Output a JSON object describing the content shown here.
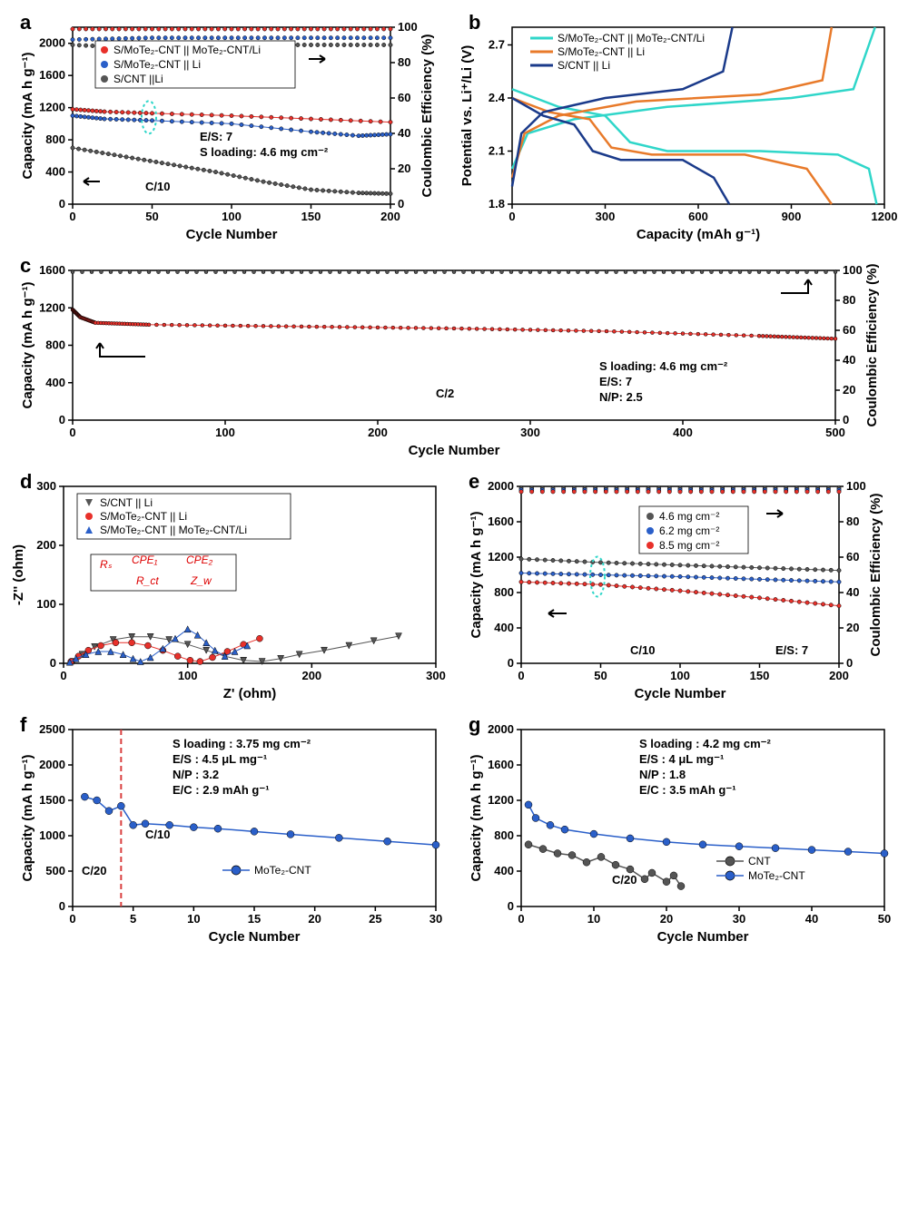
{
  "colors": {
    "red": "#e8302a",
    "blue": "#2a5fc9",
    "gray": "#555555",
    "darkblue": "#1a3a8a",
    "teal": "#2fd6c9",
    "orange": "#e87a2a",
    "black": "#000000",
    "dashred": "#d94040",
    "markerRed": "#e8302a",
    "markerBlue": "#2a5fc9",
    "markerGray": "#555555"
  },
  "a": {
    "letter": "a",
    "xlabel": "Cycle Number",
    "ylabel": "Capacity (mA h g⁻¹)",
    "y2label": "Coulombic Efficiency (%)",
    "xlim": [
      0,
      200
    ],
    "ylim": [
      0,
      2200
    ],
    "y2lim": [
      0,
      100
    ],
    "xticks": [
      0,
      50,
      100,
      150,
      200
    ],
    "yticks": [
      0,
      400,
      800,
      1200,
      1600,
      2000
    ],
    "y2ticks": [
      0,
      20,
      40,
      60,
      80,
      100
    ],
    "legend": [
      {
        "c": "#e8302a",
        "t": "S/MoTe₂-CNT || MoTe₂-CNT/Li"
      },
      {
        "c": "#2a5fc9",
        "t": "S/MoTe₂-CNT || Li"
      },
      {
        "c": "#555555",
        "t": "S/CNT ||Li"
      }
    ],
    "anno": [
      "E/S: 7",
      "S loading: 4.6 mg cm⁻²",
      "C/10"
    ],
    "series": [
      {
        "c": "#e8302a",
        "cap": [
          [
            0,
            1180
          ],
          [
            20,
            1150
          ],
          [
            50,
            1130
          ],
          [
            100,
            1100
          ],
          [
            150,
            1060
          ],
          [
            200,
            1020
          ]
        ],
        "ce": [
          [
            0,
            99
          ],
          [
            50,
            99
          ],
          [
            100,
            99
          ],
          [
            150,
            99
          ],
          [
            200,
            99
          ]
        ]
      },
      {
        "c": "#2a5fc9",
        "cap": [
          [
            0,
            1100
          ],
          [
            20,
            1060
          ],
          [
            50,
            1040
          ],
          [
            100,
            1000
          ],
          [
            150,
            900
          ],
          [
            180,
            850
          ],
          [
            200,
            870
          ]
        ],
        "ce": [
          [
            0,
            93
          ],
          [
            50,
            94
          ],
          [
            100,
            94
          ],
          [
            150,
            94
          ],
          [
            200,
            94
          ]
        ]
      },
      {
        "c": "#555555",
        "cap": [
          [
            0,
            700
          ],
          [
            30,
            600
          ],
          [
            60,
            500
          ],
          [
            90,
            400
          ],
          [
            120,
            280
          ],
          [
            150,
            180
          ],
          [
            180,
            140
          ],
          [
            200,
            130
          ]
        ],
        "ce": [
          [
            0,
            90
          ],
          [
            50,
            88
          ],
          [
            100,
            90
          ],
          [
            150,
            90
          ],
          [
            200,
            90
          ]
        ]
      }
    ]
  },
  "b": {
    "letter": "b",
    "xlabel": "Capacity (mAh g⁻¹)",
    "ylabel": "Potential vs. Li⁺/Li (V)",
    "xlim": [
      0,
      1200
    ],
    "ylim": [
      1.8,
      2.8
    ],
    "xticks": [
      0,
      300,
      600,
      900,
      1200
    ],
    "yticks": [
      1.8,
      2.1,
      2.4,
      2.7
    ],
    "legend": [
      {
        "c": "#2fd6c9",
        "t": "S/MoTe₂-CNT || MoTe₂-CNT/Li"
      },
      {
        "c": "#e87a2a",
        "t": "S/MoTe₂-CNT || Li"
      },
      {
        "c": "#1a3a8a",
        "t": "S/CNT || Li"
      }
    ],
    "curves": [
      {
        "c": "#2fd6c9",
        "d": [
          [
            0,
            2.45
          ],
          [
            150,
            2.35
          ],
          [
            300,
            2.3
          ],
          [
            380,
            2.15
          ],
          [
            500,
            2.1
          ],
          [
            800,
            2.1
          ],
          [
            1050,
            2.08
          ],
          [
            1150,
            2.0
          ],
          [
            1175,
            1.8
          ]
        ],
        "ch": [
          [
            0,
            2.0
          ],
          [
            50,
            2.2
          ],
          [
            200,
            2.28
          ],
          [
            500,
            2.35
          ],
          [
            900,
            2.4
          ],
          [
            1100,
            2.45
          ],
          [
            1170,
            2.8
          ]
        ]
      },
      {
        "c": "#e87a2a",
        "d": [
          [
            0,
            2.4
          ],
          [
            120,
            2.32
          ],
          [
            250,
            2.28
          ],
          [
            320,
            2.12
          ],
          [
            450,
            2.08
          ],
          [
            750,
            2.08
          ],
          [
            950,
            2.0
          ],
          [
            1030,
            1.8
          ]
        ],
        "ch": [
          [
            0,
            1.95
          ],
          [
            40,
            2.2
          ],
          [
            150,
            2.3
          ],
          [
            400,
            2.38
          ],
          [
            800,
            2.42
          ],
          [
            1000,
            2.5
          ],
          [
            1030,
            2.8
          ]
        ]
      },
      {
        "c": "#1a3a8a",
        "d": [
          [
            0,
            2.4
          ],
          [
            100,
            2.3
          ],
          [
            200,
            2.25
          ],
          [
            260,
            2.1
          ],
          [
            350,
            2.05
          ],
          [
            550,
            2.05
          ],
          [
            650,
            1.95
          ],
          [
            700,
            1.8
          ]
        ],
        "ch": [
          [
            0,
            1.9
          ],
          [
            30,
            2.2
          ],
          [
            100,
            2.32
          ],
          [
            300,
            2.4
          ],
          [
            550,
            2.45
          ],
          [
            680,
            2.55
          ],
          [
            710,
            2.8
          ]
        ]
      }
    ]
  },
  "c": {
    "letter": "c",
    "xlabel": "Cycle Number",
    "ylabel": "Capacity (mA h g⁻¹)",
    "y2label": "Coulombic Efficiency (%)",
    "xlim": [
      0,
      500
    ],
    "ylim": [
      0,
      1600
    ],
    "y2lim": [
      0,
      100
    ],
    "xticks": [
      0,
      100,
      200,
      300,
      400,
      500
    ],
    "yticks": [
      0,
      400,
      800,
      1200,
      1600
    ],
    "y2ticks": [
      0,
      20,
      40,
      60,
      80,
      100
    ],
    "anno": [
      "S loading: 4.6 mg cm⁻²",
      "E/S: 7",
      "N/P: 2.5",
      "C/2"
    ],
    "cap": [
      [
        0,
        1180
      ],
      [
        5,
        1100
      ],
      [
        15,
        1040
      ],
      [
        50,
        1020
      ],
      [
        150,
        1000
      ],
      [
        250,
        980
      ],
      [
        350,
        950
      ],
      [
        450,
        900
      ],
      [
        500,
        870
      ]
    ],
    "ce": [
      [
        0,
        99
      ],
      [
        250,
        99
      ],
      [
        500,
        99
      ]
    ],
    "c": "#e8302a",
    "cce": "#555555"
  },
  "d": {
    "letter": "d",
    "xlabel": "Z' (ohm)",
    "ylabel": "-Z'' (ohm)",
    "xlim": [
      0,
      300
    ],
    "ylim": [
      0,
      300
    ],
    "xticks": [
      0,
      100,
      200,
      300
    ],
    "yticks": [
      0,
      100,
      200,
      300
    ],
    "legend": [
      {
        "c": "#555555",
        "t": "S/CNT || Li",
        "m": "tri-down"
      },
      {
        "c": "#e8302a",
        "t": "S/MoTe₂-CNT || Li",
        "m": "circle"
      },
      {
        "c": "#2a5fc9",
        "t": "S/MoTe₂-CNT || MoTe₂-CNT/Li",
        "m": "tri-up"
      }
    ],
    "series": [
      {
        "c": "#555555",
        "m": "tri-down",
        "pts": [
          [
            8,
            3
          ],
          [
            15,
            15
          ],
          [
            25,
            28
          ],
          [
            40,
            40
          ],
          [
            55,
            45
          ],
          [
            70,
            45
          ],
          [
            85,
            40
          ],
          [
            100,
            32
          ],
          [
            115,
            22
          ],
          [
            130,
            12
          ],
          [
            145,
            5
          ],
          [
            160,
            3
          ],
          [
            175,
            8
          ],
          [
            190,
            15
          ],
          [
            210,
            22
          ],
          [
            230,
            30
          ],
          [
            250,
            38
          ],
          [
            270,
            46
          ]
        ]
      },
      {
        "c": "#e8302a",
        "m": "circle",
        "pts": [
          [
            6,
            3
          ],
          [
            12,
            12
          ],
          [
            20,
            22
          ],
          [
            30,
            30
          ],
          [
            42,
            35
          ],
          [
            55,
            35
          ],
          [
            68,
            30
          ],
          [
            80,
            22
          ],
          [
            92,
            12
          ],
          [
            102,
            5
          ],
          [
            110,
            3
          ],
          [
            120,
            10
          ],
          [
            132,
            20
          ],
          [
            145,
            32
          ],
          [
            158,
            42
          ]
        ]
      },
      {
        "c": "#2a5fc9",
        "m": "tri-up",
        "pts": [
          [
            5,
            2
          ],
          [
            10,
            8
          ],
          [
            18,
            15
          ],
          [
            28,
            20
          ],
          [
            38,
            20
          ],
          [
            48,
            15
          ],
          [
            56,
            8
          ],
          [
            62,
            3
          ],
          [
            70,
            10
          ],
          [
            80,
            25
          ],
          [
            90,
            42
          ],
          [
            100,
            58
          ],
          [
            108,
            48
          ],
          [
            115,
            35
          ],
          [
            122,
            22
          ],
          [
            130,
            12
          ],
          [
            138,
            20
          ],
          [
            148,
            30
          ]
        ]
      }
    ]
  },
  "e": {
    "letter": "e",
    "xlabel": "Cycle Number",
    "ylabel": "Capacity (mA h g⁻¹)",
    "y2label": "Coulombic Efficiency (%)",
    "xlim": [
      0,
      200
    ],
    "ylim": [
      0,
      2000
    ],
    "y2lim": [
      0,
      100
    ],
    "xticks": [
      0,
      50,
      100,
      150,
      200
    ],
    "yticks": [
      0,
      400,
      800,
      1200,
      1600,
      2000
    ],
    "y2ticks": [
      0,
      20,
      40,
      60,
      80,
      100
    ],
    "legend": [
      {
        "c": "#555555",
        "t": "4.6 mg cm⁻²"
      },
      {
        "c": "#2a5fc9",
        "t": "6.2 mg cm⁻²"
      },
      {
        "c": "#e8302a",
        "t": "8.5 mg cm⁻²"
      }
    ],
    "anno": [
      "C/10",
      "E/S: 7"
    ],
    "series": [
      {
        "c": "#555555",
        "cap": [
          [
            0,
            1180
          ],
          [
            50,
            1140
          ],
          [
            100,
            1110
          ],
          [
            150,
            1080
          ],
          [
            200,
            1050
          ]
        ],
        "ce": [
          [
            0,
            99
          ],
          [
            100,
            99
          ],
          [
            200,
            99
          ]
        ]
      },
      {
        "c": "#2a5fc9",
        "cap": [
          [
            0,
            1020
          ],
          [
            50,
            1000
          ],
          [
            100,
            980
          ],
          [
            150,
            950
          ],
          [
            200,
            920
          ]
        ],
        "ce": [
          [
            0,
            98
          ],
          [
            100,
            98
          ],
          [
            200,
            98
          ]
        ]
      },
      {
        "c": "#e8302a",
        "cap": [
          [
            0,
            920
          ],
          [
            50,
            890
          ],
          [
            100,
            820
          ],
          [
            150,
            740
          ],
          [
            200,
            650
          ]
        ],
        "ce": [
          [
            0,
            97
          ],
          [
            100,
            97
          ],
          [
            200,
            97
          ]
        ]
      }
    ]
  },
  "f": {
    "letter": "f",
    "xlabel": "Cycle Number",
    "ylabel": "Capacity (mA h g⁻¹)",
    "xlim": [
      0,
      30
    ],
    "ylim": [
      0,
      2500
    ],
    "xticks": [
      0,
      5,
      10,
      15,
      20,
      25,
      30
    ],
    "yticks": [
      0,
      500,
      1000,
      1500,
      2000,
      2500
    ],
    "legend": [
      {
        "c": "#2a5fc9",
        "t": "MoTe₂-CNT"
      }
    ],
    "anno": [
      "S loading : 3.75 mg cm⁻²",
      "E/S : 4.5 μL mg⁻¹",
      "N/P : 3.2",
      "E/C : 2.9 mAh g⁻¹",
      "C/20",
      "C/10"
    ],
    "vline": 4,
    "cap": [
      [
        1,
        1550
      ],
      [
        2,
        1500
      ],
      [
        3,
        1350
      ],
      [
        4,
        1420
      ],
      [
        5,
        1150
      ],
      [
        6,
        1170
      ],
      [
        8,
        1150
      ],
      [
        10,
        1120
      ],
      [
        12,
        1100
      ],
      [
        15,
        1060
      ],
      [
        18,
        1020
      ],
      [
        22,
        970
      ],
      [
        26,
        920
      ],
      [
        30,
        870
      ]
    ],
    "c": "#2a5fc9"
  },
  "g": {
    "letter": "g",
    "xlabel": "Cycle Number",
    "ylabel": "Capacity (mA h g⁻¹)",
    "xlim": [
      0,
      50
    ],
    "ylim": [
      0,
      2000
    ],
    "xticks": [
      0,
      10,
      20,
      30,
      40,
      50
    ],
    "yticks": [
      0,
      400,
      800,
      1200,
      1600,
      2000
    ],
    "legend": [
      {
        "c": "#555555",
        "t": "CNT"
      },
      {
        "c": "#2a5fc9",
        "t": "MoTe₂-CNT"
      }
    ],
    "anno": [
      "S loading : 4.2 mg cm⁻²",
      "E/S : 4 μL mg⁻¹",
      "N/P : 1.8",
      "E/C : 3.5 mAh g⁻¹",
      "C/20"
    ],
    "series": [
      {
        "c": "#555555",
        "cap": [
          [
            1,
            700
          ],
          [
            3,
            650
          ],
          [
            5,
            600
          ],
          [
            7,
            580
          ],
          [
            9,
            500
          ],
          [
            11,
            560
          ],
          [
            13,
            470
          ],
          [
            15,
            420
          ],
          [
            17,
            310
          ],
          [
            18,
            380
          ],
          [
            20,
            280
          ],
          [
            21,
            350
          ],
          [
            22,
            230
          ]
        ]
      },
      {
        "c": "#2a5fc9",
        "cap": [
          [
            1,
            1150
          ],
          [
            2,
            1000
          ],
          [
            4,
            920
          ],
          [
            6,
            870
          ],
          [
            10,
            820
          ],
          [
            15,
            770
          ],
          [
            20,
            730
          ],
          [
            25,
            700
          ],
          [
            30,
            680
          ],
          [
            35,
            660
          ],
          [
            40,
            640
          ],
          [
            45,
            620
          ],
          [
            50,
            600
          ]
        ]
      }
    ]
  }
}
